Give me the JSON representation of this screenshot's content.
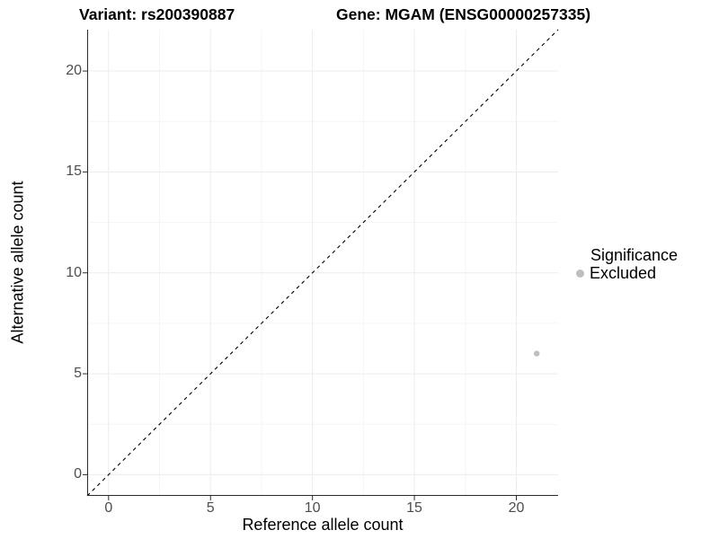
{
  "title": {
    "variant": "Variant: rs200390887",
    "gene": "Gene: MGAM (ENSG00000257335)"
  },
  "axes": {
    "x_label": "Reference allele count",
    "y_label": "Alternative allele count"
  },
  "legend": {
    "title": "Significance",
    "position": "right",
    "items": [
      {
        "label": "Excluded",
        "color": "#bebebe",
        "marker": "circle"
      }
    ]
  },
  "colors": {
    "background": "#ffffff",
    "axis_line": "#2b2b2b",
    "tick_label": "#4d4d4d",
    "grid_major": "#ececec",
    "grid_minor": "#f5f5f5",
    "reference_line": "#000000",
    "point": "#bebebe"
  },
  "chart_data": {
    "type": "scatter",
    "title": "Variant: rs200390887    Gene: MGAM (ENSG00000257335)",
    "xlabel": "Reference allele count",
    "ylabel": "Alternative allele count",
    "xlim": [
      -1.05,
      22.05
    ],
    "ylim": [
      -1.05,
      22.05
    ],
    "x_ticks": [
      0,
      5,
      10,
      15,
      20
    ],
    "y_ticks": [
      0,
      5,
      10,
      15,
      20
    ],
    "x_minor_ticks": [
      2.5,
      7.5,
      12.5,
      17.5
    ],
    "y_minor_ticks": [
      2.5,
      7.5,
      12.5,
      17.5
    ],
    "grid": true,
    "legend_position": "right",
    "series": [
      {
        "name": "Excluded",
        "color": "#bebebe",
        "points": [
          {
            "x": 21,
            "y": 6
          }
        ]
      }
    ],
    "reference_line": {
      "type": "identity",
      "slope": 1,
      "intercept": 0,
      "style": "dashed",
      "color": "#000000"
    }
  }
}
